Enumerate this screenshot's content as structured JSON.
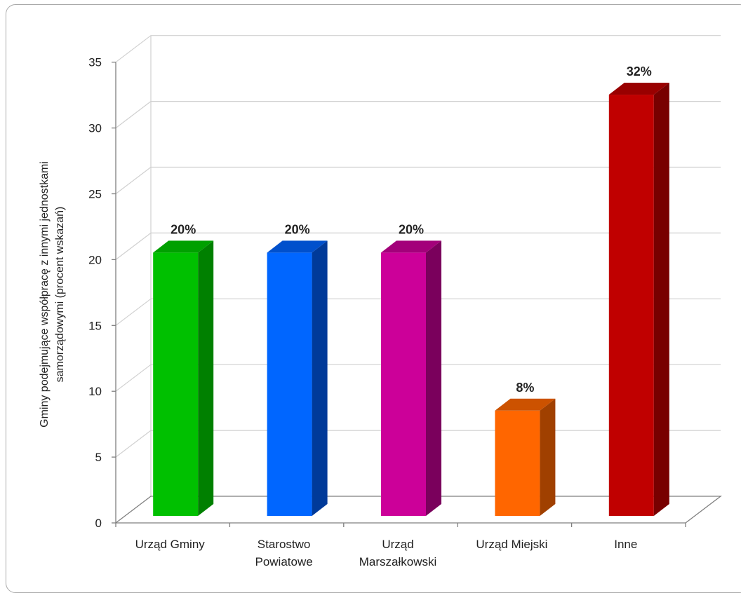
{
  "chart_data": {
    "type": "bar",
    "style": "3d-column",
    "categories": [
      [
        "Urząd Gminy"
      ],
      [
        "Starostwo",
        "Powiatowe"
      ],
      [
        "Urząd",
        "Marszałkowski"
      ],
      [
        "Urząd Miejski"
      ],
      [
        "Inne"
      ]
    ],
    "values": [
      20,
      20,
      20,
      8,
      32
    ],
    "data_labels": [
      "20%",
      "20%",
      "20%",
      "8%",
      "32%"
    ],
    "colors": [
      {
        "front": "#00c000",
        "side": "#008000",
        "top": "#00a000"
      },
      {
        "front": "#0066ff",
        "side": "#003a99",
        "top": "#0050cc"
      },
      {
        "front": "#cc0099",
        "side": "#7a005c",
        "top": "#a3007a"
      },
      {
        "front": "#ff6600",
        "side": "#a04000",
        "top": "#cc5200"
      },
      {
        "front": "#c00000",
        "side": "#780000",
        "top": "#990000"
      }
    ],
    "ylabel": [
      "Gminy podejmujące współpracę z innymi jednostkami",
      "samorządowymi (procent wskazań)"
    ],
    "xlabel": "",
    "ylim": [
      0,
      35
    ],
    "yticks": [
      0,
      5,
      10,
      15,
      20,
      25,
      30,
      35
    ],
    "grid": true,
    "legend": "none"
  }
}
